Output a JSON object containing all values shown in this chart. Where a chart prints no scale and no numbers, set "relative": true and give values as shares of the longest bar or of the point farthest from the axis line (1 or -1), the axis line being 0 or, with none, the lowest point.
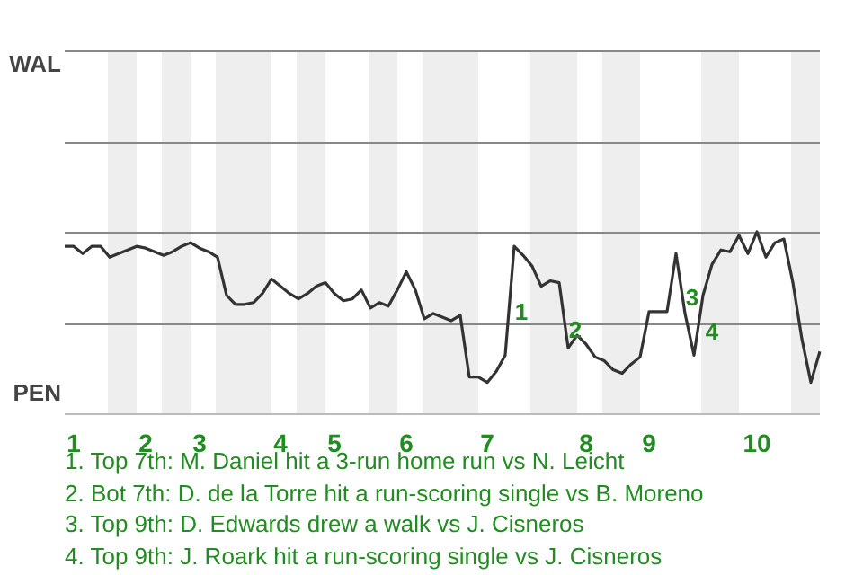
{
  "chart_data": {
    "type": "line",
    "relative": true,
    "categories": [
      null,
      "1",
      null,
      null,
      null,
      null,
      null,
      null,
      null,
      "2",
      null,
      null,
      null,
      null,
      null,
      "3",
      null,
      null,
      null,
      null,
      null,
      null,
      null,
      null,
      "4",
      null,
      null,
      null,
      null,
      null,
      "5",
      null,
      null,
      null,
      null,
      null,
      null,
      null,
      "6",
      null,
      null,
      null,
      null,
      null,
      null,
      null,
      null,
      "7",
      null,
      null,
      null,
      null,
      null,
      null,
      null,
      null,
      null,
      null,
      "8",
      null,
      null,
      null,
      null,
      null,
      null,
      "9",
      null,
      null,
      null,
      null,
      null,
      null,
      null,
      null,
      null,
      null,
      null,
      "10",
      null,
      null,
      null,
      null,
      null,
      null,
      null
    ],
    "series": [
      {
        "color": "#333333",
        "values": [
          0.92,
          0.92,
          0.88,
          0.92,
          0.92,
          0.86,
          0.88,
          0.9,
          0.92,
          0.91,
          0.89,
          0.87,
          0.89,
          0.92,
          0.94,
          0.91,
          0.89,
          0.86,
          0.65,
          0.6,
          0.6,
          0.61,
          0.66,
          0.74,
          0.7,
          0.66,
          0.63,
          0.66,
          0.7,
          0.72,
          0.66,
          0.62,
          0.63,
          0.68,
          0.58,
          0.61,
          0.59,
          0.68,
          0.78,
          0.68,
          0.52,
          0.55,
          0.53,
          0.51,
          0.54,
          0.2,
          0.2,
          0.17,
          0.23,
          0.32,
          0.92,
          0.87,
          0.81,
          0.7,
          0.73,
          0.72,
          0.36,
          0.43,
          0.38,
          0.31,
          0.29,
          0.24,
          0.22,
          0.27,
          0.31,
          0.56,
          0.56,
          0.56,
          0.88,
          0.55,
          0.32,
          0.65,
          0.82,
          0.9,
          0.89,
          0.98,
          0.88,
          1.0,
          0.86,
          0.94,
          0.96,
          0.72,
          0.41,
          0.17,
          0.34
        ]
      }
    ],
    "legend": false,
    "marker": "none",
    "line_style": "solid",
    "ref_lines": [
      {
        "axis": "y",
        "value": 0.5,
        "color": "#888888"
      },
      {
        "axis": "y",
        "value": 1,
        "color": "#888888"
      },
      {
        "axis": "y",
        "value": 1.5,
        "color": "#888888"
      },
      {
        "axis": "y",
        "value": 2,
        "color": "#888888"
      }
    ],
    "annotations": [
      "WAL",
      "PEN",
      "1",
      "2",
      "3",
      "4",
      "1. Top 7th: M. Daniel hit a 3-run home run vs N. Leicht",
      "2. Bot 7th: D. de la Torre hit a run-scoring single vs B. Moreno",
      "3. Top 9th: D. Edwards drew a walk vs J. Cisneros",
      "4. Top 9th: J. Roark hit a run-scoring single vs J. Cisneros"
    ]
  }
}
